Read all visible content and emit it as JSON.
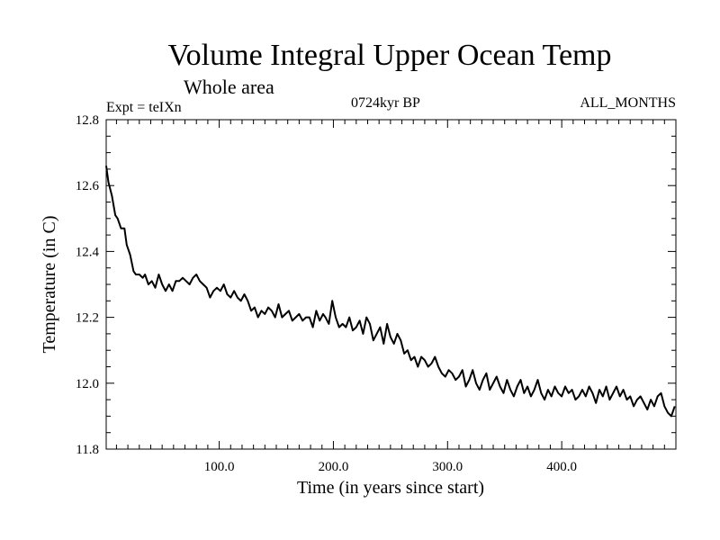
{
  "chart_data": {
    "type": "line",
    "title": "Volume Integral Upper Ocean Temp",
    "subtitle": "Whole area",
    "experiment_label": "Expt = teIXn",
    "period_label": "0724kyr BP",
    "months_label": "ALL_MONTHS",
    "xlabel": "Time (in years since start)",
    "ylabel": "Temperature (in C)",
    "xlim": [
      1,
      500
    ],
    "ylim": [
      11.8,
      12.8
    ],
    "xticks": [
      100,
      200,
      300,
      400
    ],
    "xtick_labels": [
      "100.0",
      "200.0",
      "300.0",
      "400.0"
    ],
    "yticks": [
      11.8,
      12.0,
      12.2,
      12.4,
      12.6,
      12.8
    ],
    "ytick_labels": [
      "11.8",
      "12.0",
      "12.2",
      "12.4",
      "12.6",
      "12.8"
    ],
    "grid": false,
    "series": [
      {
        "x": [
          1,
          3,
          6,
          9,
          11,
          14,
          17,
          19,
          22,
          25,
          27,
          30,
          33,
          35,
          38,
          41,
          44,
          47,
          50,
          53,
          56,
          59,
          62,
          65,
          68,
          71,
          74,
          77,
          80,
          83,
          86,
          89,
          92,
          95,
          98,
          101,
          104,
          107,
          110,
          113,
          116,
          119,
          122,
          125,
          128,
          131,
          134,
          137,
          140,
          143,
          146,
          149,
          152,
          155,
          158,
          161,
          164,
          167,
          170,
          173,
          176,
          179,
          182,
          185,
          188,
          191,
          193,
          196,
          199,
          202,
          205,
          208,
          211,
          214,
          217,
          220,
          223,
          226,
          229,
          232,
          235,
          238,
          241,
          244,
          247,
          250,
          253,
          256,
          259,
          262,
          265,
          268,
          271,
          274,
          277,
          280,
          283,
          286,
          289,
          292,
          295,
          298,
          301,
          304,
          307,
          310,
          313,
          316,
          319,
          322,
          325,
          328,
          331,
          334,
          337,
          340,
          343,
          346,
          349,
          352,
          355,
          358,
          361,
          364,
          367,
          370,
          373,
          376,
          379,
          382,
          385,
          388,
          391,
          394,
          397,
          400,
          403,
          406,
          409,
          412,
          415,
          418,
          421,
          424,
          427,
          430,
          433,
          436,
          439,
          442,
          445,
          448,
          451,
          454,
          457,
          460,
          463,
          466,
          469,
          472,
          475,
          478,
          481,
          484,
          487,
          490,
          493,
          496,
          499
        ],
        "values": [
          12.66,
          12.61,
          12.57,
          12.51,
          12.5,
          12.47,
          12.47,
          12.42,
          12.39,
          12.34,
          12.33,
          12.33,
          12.32,
          12.33,
          12.3,
          12.31,
          12.29,
          12.33,
          12.3,
          12.28,
          12.3,
          12.28,
          12.31,
          12.31,
          12.32,
          12.31,
          12.3,
          12.32,
          12.33,
          12.31,
          12.3,
          12.29,
          12.26,
          12.28,
          12.29,
          12.28,
          12.3,
          12.27,
          12.26,
          12.28,
          12.26,
          12.25,
          12.27,
          12.25,
          12.22,
          12.23,
          12.2,
          12.22,
          12.21,
          12.23,
          12.22,
          12.2,
          12.24,
          12.2,
          12.21,
          12.22,
          12.19,
          12.2,
          12.21,
          12.19,
          12.2,
          12.2,
          12.17,
          12.22,
          12.19,
          12.21,
          12.2,
          12.18,
          12.25,
          12.2,
          12.17,
          12.18,
          12.17,
          12.2,
          12.16,
          12.17,
          12.19,
          12.15,
          12.2,
          12.18,
          12.13,
          12.15,
          12.17,
          12.12,
          12.18,
          12.14,
          12.12,
          12.15,
          12.13,
          12.09,
          12.1,
          12.07,
          12.08,
          12.05,
          12.08,
          12.07,
          12.05,
          12.06,
          12.08,
          12.05,
          12.03,
          12.02,
          12.04,
          12.03,
          12.01,
          12.02,
          12.04,
          11.99,
          12.01,
          12.04,
          12.0,
          11.98,
          12.01,
          12.03,
          11.98,
          12.0,
          12.02,
          11.99,
          11.97,
          12.01,
          11.98,
          11.96,
          11.99,
          12.01,
          11.97,
          11.99,
          11.96,
          11.98,
          12.01,
          11.97,
          11.95,
          11.98,
          11.96,
          11.99,
          11.97,
          11.96,
          11.99,
          11.97,
          11.98,
          11.95,
          11.96,
          11.98,
          11.96,
          11.99,
          11.97,
          11.94,
          11.98,
          11.96,
          11.99,
          11.95,
          11.97,
          11.99,
          11.96,
          11.98,
          11.95,
          11.96,
          11.93,
          11.95,
          11.96,
          11.94,
          11.92,
          11.95,
          11.93,
          11.96,
          11.97,
          11.93,
          11.91,
          11.9,
          11.93
        ]
      }
    ]
  }
}
